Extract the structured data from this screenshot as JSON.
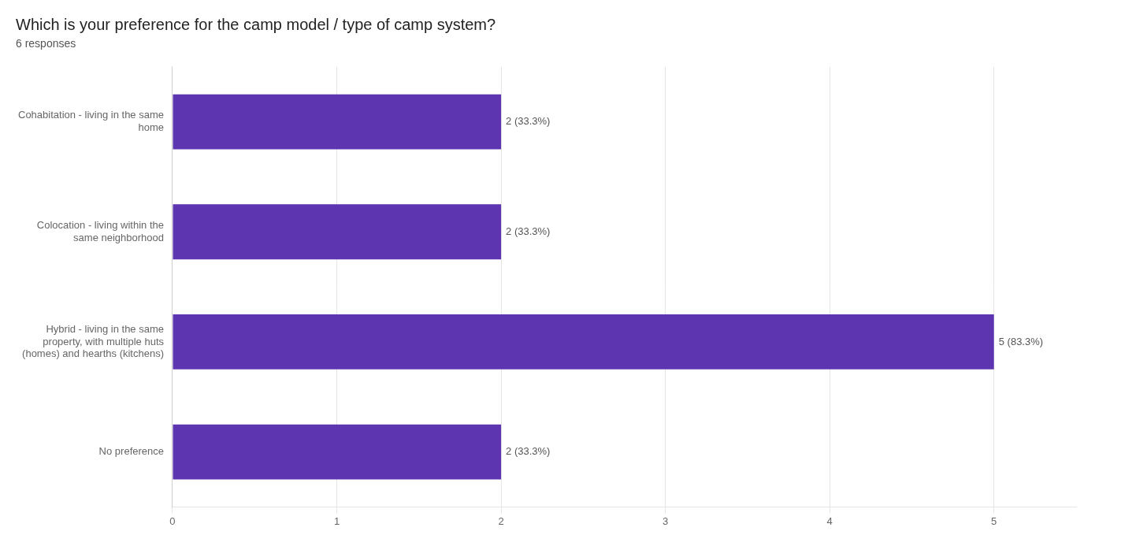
{
  "chart_data": {
    "type": "bar",
    "orientation": "horizontal",
    "title": "Which is your preference for the camp model / type of camp system?",
    "subtitle": "6 responses",
    "categories": [
      "Cohabitation - living in the same\nhome",
      "Colocation - living within the\nsame neighborhood",
      "Hybrid - living in the same\nproperty, with multiple huts\n(homes) and hearths (kitchens)",
      "No preference"
    ],
    "values": [
      2,
      2,
      5,
      2
    ],
    "value_labels": [
      "2 (33.3%)",
      "2 (33.3%)",
      "5 (83.3%)",
      "2 (33.3%)"
    ],
    "data_labels": true,
    "color": "#5e35b1",
    "xlim": [
      0,
      5.5
    ],
    "xticks": [
      0,
      1,
      2,
      3,
      4,
      5
    ],
    "grid": true
  }
}
